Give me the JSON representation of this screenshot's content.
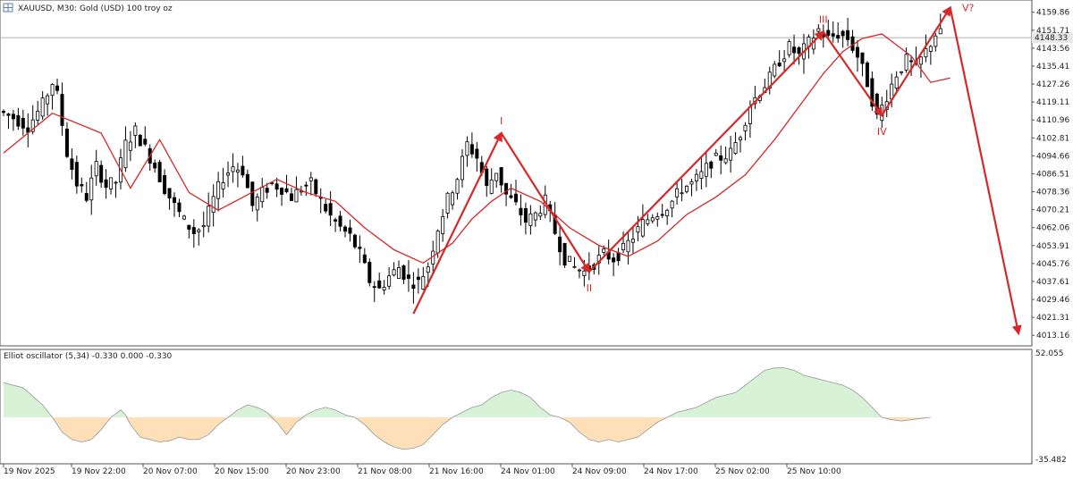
{
  "header": {
    "symbol_title": "XAUUSD, M30:  Gold (USD) 100 troy oz",
    "current_price_badge": "4148.33"
  },
  "oscillator": {
    "title": "Elliot oscillator (5,34) -0.330 0.000 -0.330",
    "axis_max_label": "52.055",
    "axis_min_label": "-35.482"
  },
  "colors": {
    "candle": "#000000",
    "moving_average": "#d62828",
    "wave_arrows": "#d62828",
    "osc_positive": "#d8f2d6",
    "osc_negative": "#fde0b8",
    "grid_border": "#555555",
    "price_line": "#b0b0b0"
  },
  "chart_data": [
    {
      "type": "candlestick",
      "title": "XAUUSD, M30:  Gold (USD) 100 troy oz",
      "x_labels": [
        "19 Nov 2025",
        "19 Nov 22:00",
        "20 Nov 07:00",
        "20 Nov 15:00",
        "20 Nov 23:00",
        "21 Nov 08:00",
        "21 Nov 16:00",
        "24 Nov 01:00",
        "24 Nov 09:00",
        "24 Nov 17:00",
        "25 Nov 02:00",
        "25 Nov 10:00"
      ],
      "y_ticks": [
        4159.86,
        4151.71,
        4143.56,
        4135.41,
        4127.26,
        4119.11,
        4110.96,
        4102.81,
        4094.66,
        4086.51,
        4078.36,
        4070.21,
        4062.06,
        4053.91,
        4045.76,
        4037.61,
        4029.46,
        4021.31,
        4013.16
      ],
      "ylim": [
        4010,
        4163
      ],
      "current_price": 4148.33,
      "price_path": [
        [
          0,
          4115
        ],
        [
          3,
          4112
        ],
        [
          6,
          4108
        ],
        [
          9,
          4118
        ],
        [
          11,
          4128
        ],
        [
          12,
          4122
        ],
        [
          14,
          4096
        ],
        [
          16,
          4082
        ],
        [
          18,
          4076
        ],
        [
          20,
          4090
        ],
        [
          22,
          4081
        ],
        [
          24,
          4083
        ],
        [
          26,
          4100
        ],
        [
          28,
          4106
        ],
        [
          30,
          4098
        ],
        [
          32,
          4090
        ],
        [
          34,
          4080
        ],
        [
          36,
          4072
        ],
        [
          38,
          4065
        ],
        [
          40,
          4060
        ],
        [
          42,
          4063
        ],
        [
          44,
          4075
        ],
        [
          46,
          4085
        ],
        [
          48,
          4090
        ],
        [
          50,
          4088
        ],
        [
          52,
          4072
        ],
        [
          54,
          4078
        ],
        [
          56,
          4082
        ],
        [
          58,
          4080
        ],
        [
          60,
          4076
        ],
        [
          62,
          4080
        ],
        [
          64,
          4082
        ],
        [
          66,
          4074
        ],
        [
          68,
          4067
        ],
        [
          70,
          4062
        ],
        [
          72,
          4058
        ],
        [
          74,
          4050
        ],
        [
          76,
          4038
        ],
        [
          78,
          4034
        ],
        [
          80,
          4040
        ],
        [
          82,
          4044
        ],
        [
          84,
          4038
        ],
        [
          86,
          4037
        ],
        [
          88,
          4045
        ],
        [
          90,
          4062
        ],
        [
          92,
          4075
        ],
        [
          94,
          4085
        ],
        [
          96,
          4100
        ],
        [
          98,
          4094
        ],
        [
          100,
          4080
        ],
        [
          102,
          4088
        ],
        [
          104,
          4077
        ],
        [
          106,
          4072
        ],
        [
          108,
          4065
        ],
        [
          110,
          4068
        ],
        [
          112,
          4074
        ],
        [
          114,
          4060
        ],
        [
          116,
          4048
        ],
        [
          118,
          4044
        ],
        [
          120,
          4042
        ],
        [
          122,
          4046
        ],
        [
          124,
          4050
        ],
        [
          126,
          4048
        ],
        [
          128,
          4052
        ],
        [
          130,
          4058
        ],
        [
          132,
          4064
        ],
        [
          134,
          4068
        ],
        [
          136,
          4070
        ],
        [
          138,
          4074
        ],
        [
          140,
          4080
        ],
        [
          142,
          4082
        ],
        [
          144,
          4086
        ],
        [
          146,
          4092
        ],
        [
          148,
          4094
        ],
        [
          150,
          4096
        ],
        [
          152,
          4105
        ],
        [
          154,
          4118
        ],
        [
          156,
          4124
        ],
        [
          158,
          4130
        ],
        [
          160,
          4138
        ],
        [
          162,
          4144
        ],
        [
          164,
          4140
        ],
        [
          166,
          4146
        ],
        [
          168,
          4152
        ],
        [
          170,
          4148
        ],
        [
          172,
          4150
        ],
        [
          174,
          4148
        ],
        [
          176,
          4140
        ],
        [
          178,
          4128
        ],
        [
          180,
          4112
        ],
        [
          182,
          4122
        ],
        [
          184,
          4132
        ],
        [
          186,
          4138
        ],
        [
          188,
          4135
        ],
        [
          190,
          4142
        ],
        [
          192,
          4150
        ]
      ],
      "moving_average": [
        [
          0,
          4096
        ],
        [
          10,
          4114
        ],
        [
          20,
          4105
        ],
        [
          26,
          4080
        ],
        [
          32,
          4102
        ],
        [
          38,
          4078
        ],
        [
          44,
          4070
        ],
        [
          50,
          4077
        ],
        [
          56,
          4084
        ],
        [
          62,
          4078
        ],
        [
          68,
          4074
        ],
        [
          74,
          4062
        ],
        [
          80,
          4052
        ],
        [
          86,
          4046
        ],
        [
          92,
          4055
        ],
        [
          96,
          4066
        ],
        [
          100,
          4074
        ],
        [
          104,
          4080
        ],
        [
          110,
          4074
        ],
        [
          116,
          4062
        ],
        [
          122,
          4054
        ],
        [
          128,
          4049
        ],
        [
          134,
          4056
        ],
        [
          140,
          4068
        ],
        [
          146,
          4076
        ],
        [
          152,
          4086
        ],
        [
          158,
          4102
        ],
        [
          164,
          4120
        ],
        [
          168,
          4132
        ],
        [
          172,
          4142
        ],
        [
          176,
          4148
        ],
        [
          180,
          4150
        ],
        [
          186,
          4140
        ],
        [
          190,
          4128
        ],
        [
          194,
          4130
        ]
      ],
      "elliott_waves": {
        "points": [
          {
            "x": 84,
            "y": 4023,
            "label": ""
          },
          {
            "x": 102,
            "y": 4105,
            "label": "I"
          },
          {
            "x": 120,
            "y": 4042,
            "label": "II"
          },
          {
            "x": 168,
            "y": 4151,
            "label": "III"
          },
          {
            "x": 180,
            "y": 4113,
            "label": "IV"
          },
          {
            "x": 194,
            "y": 4162,
            "label": "V?"
          },
          {
            "x": 208,
            "y": 4014,
            "label": ""
          }
        ]
      }
    },
    {
      "type": "area",
      "title": "Elliot oscillator (5,34) -0.330 0.000 -0.330",
      "ylim": [
        -35.482,
        52.055
      ],
      "values": [
        [
          0,
          28
        ],
        [
          4,
          24
        ],
        [
          8,
          10
        ],
        [
          10,
          0
        ],
        [
          12,
          -12
        ],
        [
          14,
          -18
        ],
        [
          16,
          -20
        ],
        [
          18,
          -18
        ],
        [
          20,
          -10
        ],
        [
          22,
          0
        ],
        [
          24,
          6
        ],
        [
          25,
          2
        ],
        [
          26,
          -6
        ],
        [
          28,
          -16
        ],
        [
          30,
          -18
        ],
        [
          32,
          -20
        ],
        [
          34,
          -19
        ],
        [
          36,
          -16
        ],
        [
          38,
          -18
        ],
        [
          40,
          -18
        ],
        [
          42,
          -14
        ],
        [
          44,
          -6
        ],
        [
          46,
          0
        ],
        [
          48,
          6
        ],
        [
          50,
          10
        ],
        [
          52,
          8
        ],
        [
          54,
          4
        ],
        [
          56,
          -4
        ],
        [
          58,
          -14
        ],
        [
          60,
          -4
        ],
        [
          62,
          2
        ],
        [
          64,
          6
        ],
        [
          66,
          8
        ],
        [
          68,
          6
        ],
        [
          70,
          2
        ],
        [
          72,
          0
        ],
        [
          74,
          -6
        ],
        [
          76,
          -14
        ],
        [
          78,
          -20
        ],
        [
          80,
          -24
        ],
        [
          82,
          -26
        ],
        [
          84,
          -25
        ],
        [
          86,
          -22
        ],
        [
          88,
          -14
        ],
        [
          90,
          -6
        ],
        [
          92,
          0
        ],
        [
          94,
          4
        ],
        [
          96,
          8
        ],
        [
          98,
          10
        ],
        [
          100,
          16
        ],
        [
          102,
          20
        ],
        [
          104,
          22
        ],
        [
          106,
          20
        ],
        [
          108,
          16
        ],
        [
          110,
          8
        ],
        [
          112,
          2
        ],
        [
          114,
          0
        ],
        [
          116,
          -4
        ],
        [
          118,
          -12
        ],
        [
          120,
          -18
        ],
        [
          122,
          -20
        ],
        [
          124,
          -18
        ],
        [
          126,
          -20
        ],
        [
          128,
          -18
        ],
        [
          130,
          -16
        ],
        [
          132,
          -10
        ],
        [
          134,
          -4
        ],
        [
          136,
          0
        ],
        [
          138,
          4
        ],
        [
          140,
          6
        ],
        [
          142,
          8
        ],
        [
          144,
          12
        ],
        [
          146,
          16
        ],
        [
          148,
          18
        ],
        [
          150,
          20
        ],
        [
          152,
          26
        ],
        [
          154,
          32
        ],
        [
          156,
          38
        ],
        [
          158,
          40
        ],
        [
          160,
          40
        ],
        [
          162,
          38
        ],
        [
          164,
          34
        ],
        [
          166,
          32
        ],
        [
          168,
          30
        ],
        [
          170,
          28
        ],
        [
          172,
          26
        ],
        [
          174,
          22
        ],
        [
          176,
          16
        ],
        [
          178,
          8
        ],
        [
          180,
          0
        ],
        [
          182,
          -2
        ],
        [
          184,
          -3
        ],
        [
          186,
          -2
        ],
        [
          188,
          -1
        ],
        [
          190,
          0
        ]
      ]
    }
  ]
}
